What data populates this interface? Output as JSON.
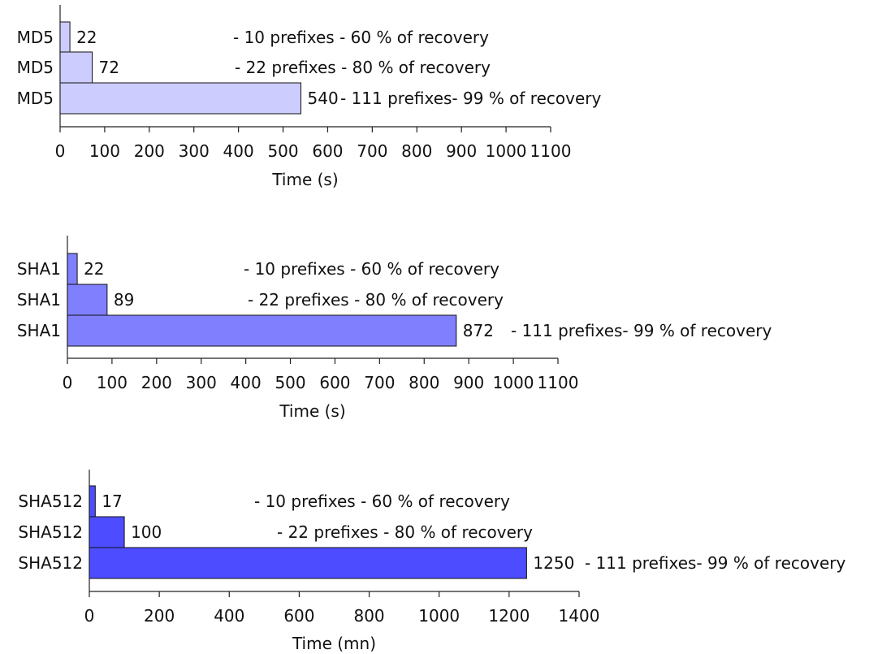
{
  "chart_data": [
    {
      "type": "bar",
      "orientation": "horizontal",
      "categories": [
        "MD5",
        "MD5",
        "MD5"
      ],
      "values": [
        22,
        72,
        540
      ],
      "value_labels": [
        "22",
        "72",
        "540"
      ],
      "annotations": [
        "- 10 prefixes - 60 % of recovery",
        "- 22 prefixes - 80 % of recovery",
        "- 111 prefixes- 99 % of recovery"
      ],
      "xlabel": "Time (s)",
      "xlim": [
        0,
        1100
      ],
      "xticks": [
        0,
        100,
        200,
        300,
        400,
        500,
        600,
        700,
        800,
        900,
        1000,
        1100
      ],
      "xtick_labels": [
        "0",
        "100",
        "200",
        "300",
        "400",
        "500",
        "600",
        "700",
        "800",
        "900",
        "1000",
        "1100"
      ],
      "color": "#ccccff",
      "grid": false,
      "legend": false
    },
    {
      "type": "bar",
      "orientation": "horizontal",
      "categories": [
        "SHA1",
        "SHA1",
        "SHA1"
      ],
      "values": [
        22,
        89,
        872
      ],
      "value_labels": [
        "22",
        "89",
        "872"
      ],
      "annotations": [
        "- 10 prefixes - 60 % of recovery",
        "- 22 prefixes - 80 % of recovery",
        "- 111 prefixes- 99 % of recovery"
      ],
      "xlabel": "Time (s)",
      "xlim": [
        0,
        1100
      ],
      "xticks": [
        0,
        100,
        200,
        300,
        400,
        500,
        600,
        700,
        800,
        900,
        1000,
        1100
      ],
      "xtick_labels": [
        "0",
        "100",
        "200",
        "300",
        "400",
        "500",
        "600",
        "700",
        "800",
        "900",
        "1000",
        "1100"
      ],
      "color": "#8080ff",
      "grid": false,
      "legend": false
    },
    {
      "type": "bar",
      "orientation": "horizontal",
      "categories": [
        "SHA512",
        "SHA512",
        "SHA512"
      ],
      "values": [
        17,
        100,
        1250
      ],
      "value_labels": [
        "17",
        "100",
        "1250"
      ],
      "annotations": [
        "- 10 prefixes - 60 % of recovery",
        "- 22 prefixes - 80 % of recovery",
        "- 111 prefixes- 99 % of recovery"
      ],
      "xlabel": "Time (mn)",
      "xlim": [
        0,
        1400
      ],
      "xticks": [
        0,
        200,
        400,
        600,
        800,
        1000,
        1200,
        1400
      ],
      "xtick_labels": [
        "0",
        "200",
        "400",
        "600",
        "800",
        "1000",
        "1200",
        "1400"
      ],
      "color": "#4d4dff",
      "grid": false,
      "legend": false
    }
  ]
}
